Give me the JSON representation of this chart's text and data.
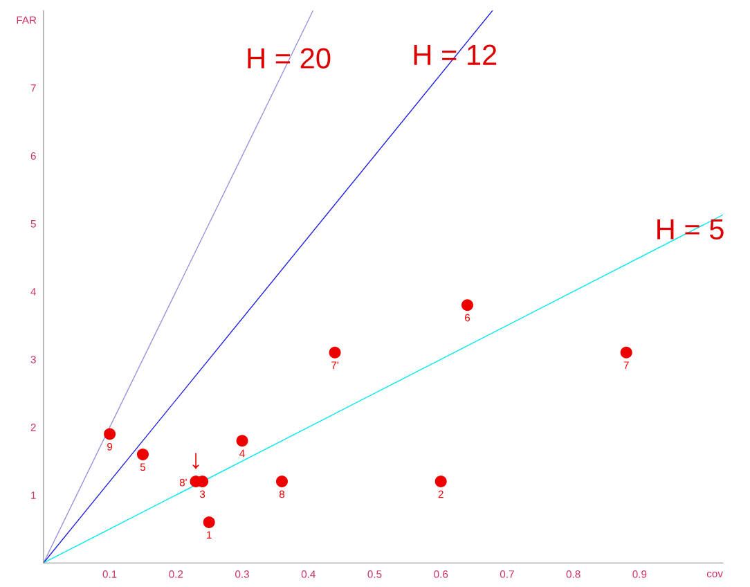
{
  "chart_data": {
    "type": "scatter",
    "xlabel": "cov",
    "ylabel": "FAR",
    "xlim": [
      0,
      1.026
    ],
    "ylim": [
      0,
      8.14
    ],
    "xticks": [
      0.1,
      0.2,
      0.3,
      0.4,
      0.5,
      0.6,
      0.7,
      0.8,
      0.9
    ],
    "yticks": [
      1,
      2,
      3,
      4,
      5,
      6,
      7
    ],
    "grid": false,
    "legend": false,
    "marker": "circle",
    "series": [
      {
        "type": "line",
        "marker": "none",
        "color": "#9a90e0",
        "x": [
          0,
          0.407
        ],
        "values": [
          0,
          8.14
        ]
      },
      {
        "type": "line",
        "marker": "none",
        "color": "#2020e0",
        "x": [
          0,
          0.678
        ],
        "values": [
          0,
          8.14
        ]
      },
      {
        "type": "line",
        "marker": "none",
        "color": "#00e8f0",
        "x": [
          0,
          1.026
        ],
        "values": [
          0,
          5.13
        ]
      },
      {
        "color": "#ee0000",
        "x": [
          0.1,
          0.15,
          0.23,
          0.24,
          0.25,
          0.3,
          0.36,
          0.44,
          0.6,
          0.64,
          0.88
        ],
        "values": [
          1.9,
          1.6,
          1.2,
          1.2,
          0.6,
          1.8,
          1.2,
          3.1,
          1.2,
          3.8,
          3.1
        ]
      }
    ],
    "annotations": [
      {
        "text": "H = 20",
        "x": 0.37,
        "y": 7.4
      },
      {
        "text": "H = 12",
        "x": 0.621,
        "y": 7.45
      },
      {
        "text": "H = 5",
        "x": 0.976,
        "y": 4.88
      },
      {
        "text": "9",
        "x": 0.1,
        "y": 1.9
      },
      {
        "text": "5",
        "x": 0.15,
        "y": 1.6
      },
      {
        "text": "8'",
        "x": 0.23,
        "y": 1.2
      },
      {
        "text": "↓",
        "x": 0.23,
        "y": 1.2
      },
      {
        "text": "3",
        "x": 0.24,
        "y": 1.2
      },
      {
        "text": "1",
        "x": 0.25,
        "y": 0.6
      },
      {
        "text": "4",
        "x": 0.3,
        "y": 1.8
      },
      {
        "text": "8",
        "x": 0.36,
        "y": 1.2
      },
      {
        "text": "7'",
        "x": 0.44,
        "y": 3.1
      },
      {
        "text": "2",
        "x": 0.6,
        "y": 1.2
      },
      {
        "text": "6",
        "x": 0.64,
        "y": 3.8
      },
      {
        "text": "7",
        "x": 0.88,
        "y": 3.1
      }
    ]
  }
}
